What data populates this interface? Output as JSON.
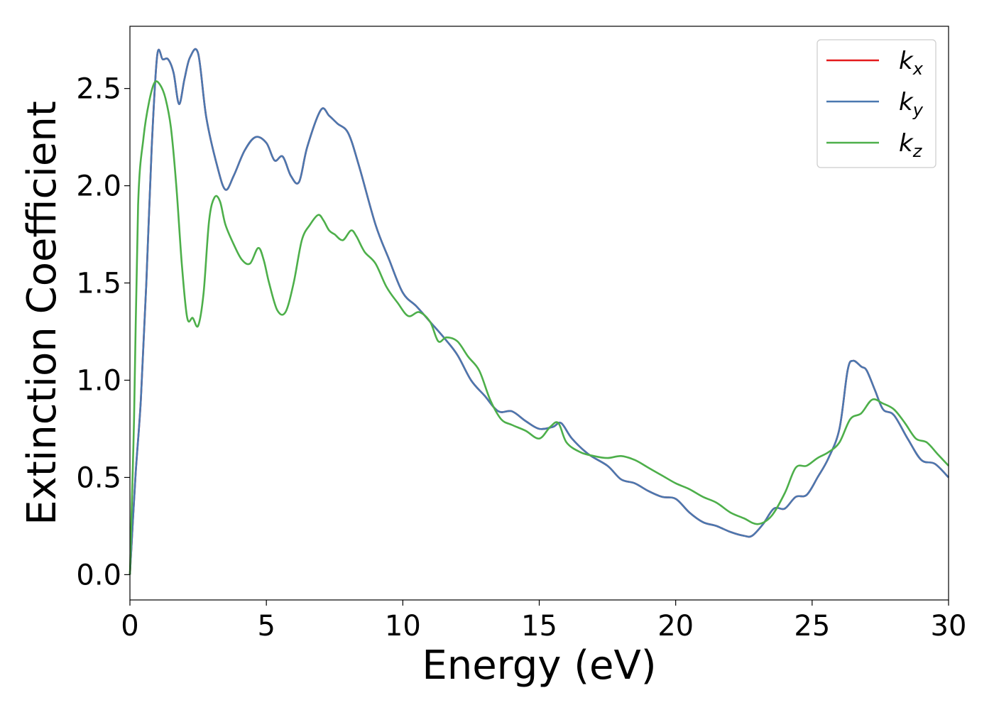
{
  "chart_data": {
    "type": "line",
    "title": "",
    "xlabel": "Energy (eV)",
    "ylabel": "Extinction Coefficient",
    "xlim": [
      0,
      30
    ],
    "ylim": [
      -0.13,
      2.82
    ],
    "xticks": [
      0,
      5,
      10,
      15,
      20,
      25,
      30
    ],
    "xtick_labels": [
      "0",
      "5",
      "10",
      "15",
      "20",
      "25",
      "30"
    ],
    "yticks": [
      0.0,
      0.5,
      1.0,
      1.5,
      2.0,
      2.5
    ],
    "ytick_labels": [
      "0.0",
      "0.5",
      "1.0",
      "1.5",
      "2.0",
      "2.5"
    ],
    "grid": false,
    "legend_position": "top-right",
    "series": [
      {
        "name": "k_x",
        "label_base": "k",
        "label_sub": "x",
        "color": "#e41a1c",
        "x": [
          0,
          0.2,
          0.4,
          0.6,
          0.8,
          1.0,
          1.2,
          1.4,
          1.6,
          1.8,
          2.0,
          2.2,
          2.5,
          2.8,
          3.2,
          3.5,
          3.8,
          4.2,
          4.6,
          5.0,
          5.3,
          5.6,
          5.9,
          6.2,
          6.5,
          7.0,
          7.3,
          7.6,
          8.0,
          8.4,
          9.0,
          9.5,
          10.0,
          10.5,
          11.0,
          11.5,
          12.0,
          12.5,
          13.0,
          13.5,
          14.0,
          14.5,
          15.0,
          15.5,
          15.8,
          16.2,
          16.8,
          17.5,
          18.0,
          18.5,
          19.0,
          19.5,
          20.0,
          20.5,
          21.0,
          21.5,
          22.0,
          22.5,
          22.8,
          23.2,
          23.6,
          24.0,
          24.4,
          24.8,
          25.2,
          25.6,
          26.0,
          26.3,
          26.5,
          26.8,
          27.0,
          27.3,
          27.6,
          28.0,
          28.5,
          29.0,
          29.5,
          30.0
        ],
        "values": [
          0.0,
          0.5,
          0.9,
          1.5,
          2.2,
          2.67,
          2.65,
          2.65,
          2.58,
          2.42,
          2.55,
          2.66,
          2.68,
          2.35,
          2.1,
          1.98,
          2.05,
          2.18,
          2.25,
          2.22,
          2.13,
          2.15,
          2.05,
          2.02,
          2.2,
          2.39,
          2.36,
          2.32,
          2.27,
          2.1,
          1.8,
          1.62,
          1.45,
          1.38,
          1.3,
          1.22,
          1.13,
          1.0,
          0.92,
          0.84,
          0.84,
          0.79,
          0.75,
          0.76,
          0.78,
          0.7,
          0.62,
          0.56,
          0.49,
          0.47,
          0.43,
          0.4,
          0.39,
          0.32,
          0.27,
          0.25,
          0.22,
          0.2,
          0.2,
          0.26,
          0.34,
          0.34,
          0.4,
          0.41,
          0.5,
          0.6,
          0.75,
          1.05,
          1.1,
          1.07,
          1.05,
          0.95,
          0.85,
          0.82,
          0.7,
          0.59,
          0.57,
          0.5
        ]
      },
      {
        "name": "k_y",
        "label_base": "k",
        "label_sub": "y",
        "color": "#4a78b0",
        "x": [
          0,
          0.2,
          0.4,
          0.6,
          0.8,
          1.0,
          1.2,
          1.4,
          1.6,
          1.8,
          2.0,
          2.2,
          2.5,
          2.8,
          3.2,
          3.5,
          3.8,
          4.2,
          4.6,
          5.0,
          5.3,
          5.6,
          5.9,
          6.2,
          6.5,
          7.0,
          7.3,
          7.6,
          8.0,
          8.4,
          9.0,
          9.5,
          10.0,
          10.5,
          11.0,
          11.5,
          12.0,
          12.5,
          13.0,
          13.5,
          14.0,
          14.5,
          15.0,
          15.5,
          15.8,
          16.2,
          16.8,
          17.5,
          18.0,
          18.5,
          19.0,
          19.5,
          20.0,
          20.5,
          21.0,
          21.5,
          22.0,
          22.5,
          22.8,
          23.2,
          23.6,
          24.0,
          24.4,
          24.8,
          25.2,
          25.6,
          26.0,
          26.3,
          26.5,
          26.8,
          27.0,
          27.3,
          27.6,
          28.0,
          28.5,
          29.0,
          29.5,
          30.0
        ],
        "values": [
          0.0,
          0.5,
          0.9,
          1.5,
          2.2,
          2.67,
          2.65,
          2.65,
          2.58,
          2.42,
          2.55,
          2.66,
          2.68,
          2.35,
          2.1,
          1.98,
          2.05,
          2.18,
          2.25,
          2.22,
          2.13,
          2.15,
          2.05,
          2.02,
          2.2,
          2.39,
          2.36,
          2.32,
          2.27,
          2.1,
          1.8,
          1.62,
          1.45,
          1.38,
          1.3,
          1.22,
          1.13,
          1.0,
          0.92,
          0.84,
          0.84,
          0.79,
          0.75,
          0.76,
          0.78,
          0.7,
          0.62,
          0.56,
          0.49,
          0.47,
          0.43,
          0.4,
          0.39,
          0.32,
          0.27,
          0.25,
          0.22,
          0.2,
          0.2,
          0.26,
          0.34,
          0.34,
          0.4,
          0.41,
          0.5,
          0.6,
          0.75,
          1.05,
          1.1,
          1.07,
          1.05,
          0.95,
          0.85,
          0.82,
          0.7,
          0.59,
          0.57,
          0.5
        ]
      },
      {
        "name": "k_z",
        "label_base": "k",
        "label_sub": "z",
        "color": "#4daf4a",
        "x": [
          0,
          0.15,
          0.3,
          0.5,
          0.7,
          0.9,
          1.1,
          1.3,
          1.5,
          1.7,
          1.9,
          2.1,
          2.3,
          2.5,
          2.7,
          2.9,
          3.1,
          3.3,
          3.5,
          3.8,
          4.1,
          4.4,
          4.7,
          4.9,
          5.1,
          5.4,
          5.7,
          6.0,
          6.3,
          6.6,
          6.9,
          7.1,
          7.3,
          7.5,
          7.8,
          8.1,
          8.3,
          8.6,
          9.0,
          9.4,
          9.8,
          10.2,
          10.6,
          11.0,
          11.3,
          11.6,
          12.0,
          12.4,
          12.8,
          13.2,
          13.6,
          14.0,
          14.5,
          15.0,
          15.4,
          15.7,
          16.0,
          16.5,
          17.0,
          17.5,
          18.0,
          18.5,
          19.0,
          19.5,
          20.0,
          20.5,
          21.0,
          21.5,
          22.0,
          22.5,
          23.0,
          23.5,
          24.0,
          24.4,
          24.8,
          25.2,
          25.6,
          26.0,
          26.4,
          26.8,
          27.2,
          27.6,
          28.0,
          28.4,
          28.8,
          29.2,
          29.6,
          30.0
        ],
        "values": [
          0.0,
          0.8,
          1.9,
          2.25,
          2.43,
          2.53,
          2.52,
          2.45,
          2.3,
          2.0,
          1.6,
          1.32,
          1.32,
          1.28,
          1.45,
          1.82,
          1.94,
          1.92,
          1.8,
          1.7,
          1.62,
          1.6,
          1.68,
          1.62,
          1.5,
          1.36,
          1.35,
          1.5,
          1.72,
          1.8,
          1.85,
          1.82,
          1.77,
          1.75,
          1.72,
          1.77,
          1.74,
          1.66,
          1.6,
          1.48,
          1.4,
          1.33,
          1.35,
          1.3,
          1.2,
          1.22,
          1.2,
          1.12,
          1.05,
          0.9,
          0.8,
          0.77,
          0.74,
          0.7,
          0.76,
          0.78,
          0.68,
          0.63,
          0.61,
          0.6,
          0.61,
          0.59,
          0.55,
          0.51,
          0.47,
          0.44,
          0.4,
          0.37,
          0.32,
          0.29,
          0.26,
          0.3,
          0.42,
          0.55,
          0.56,
          0.6,
          0.63,
          0.68,
          0.8,
          0.83,
          0.9,
          0.88,
          0.85,
          0.78,
          0.7,
          0.68,
          0.62,
          0.56
        ]
      }
    ]
  }
}
